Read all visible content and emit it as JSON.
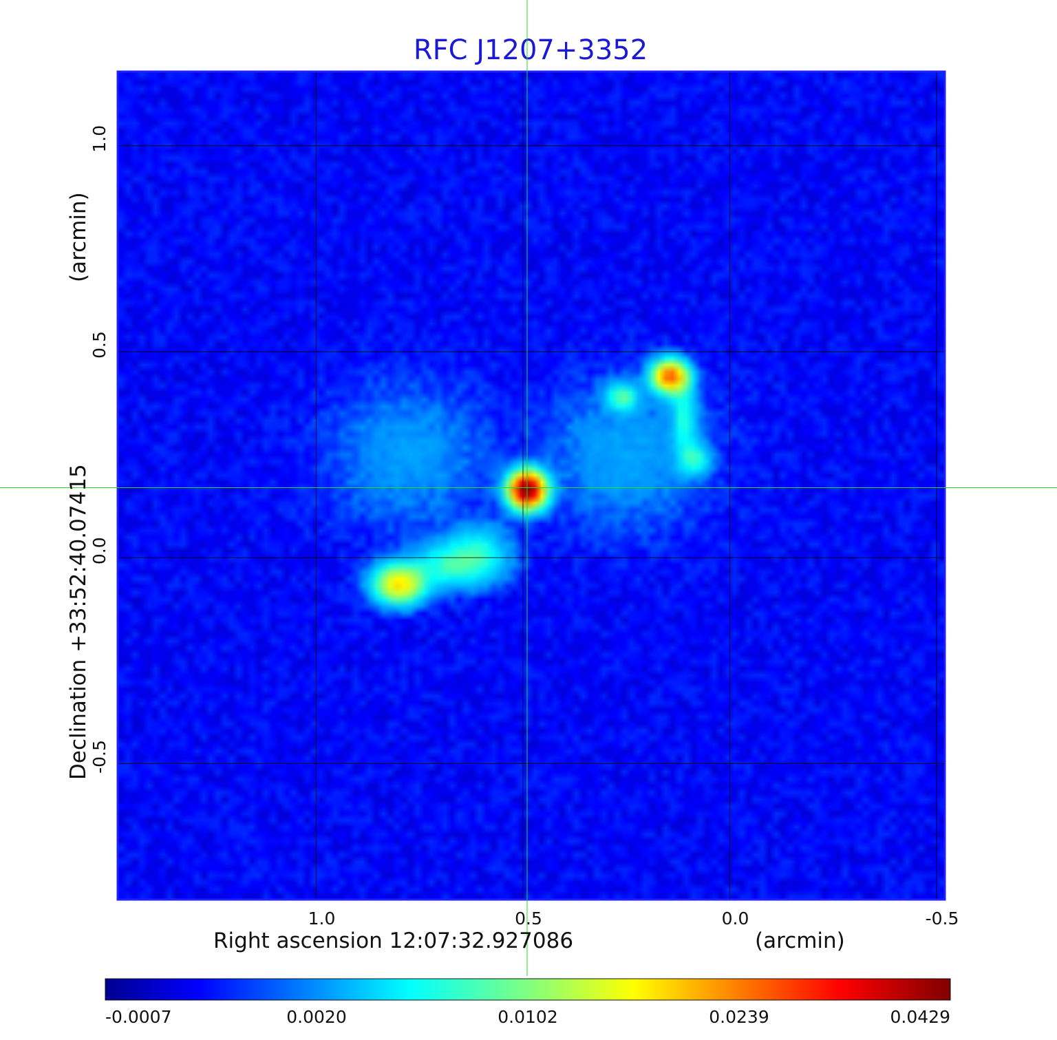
{
  "chart_data": {
    "type": "heatmap",
    "title": "RFC J1207+3352",
    "xlabel": "Right ascension  12:07:32.927086",
    "xunit": "(arcmin)",
    "ylabel": "Declination  +33:52:40.07415",
    "yunit": "(arcmin)",
    "xlim": [
      1.48,
      -0.52
    ],
    "ylim": [
      -0.83,
      1.18
    ],
    "x_ticks": [
      1.0,
      0.5,
      0.0,
      -0.5
    ],
    "x_tick_labels": [
      "1.0",
      "0.5",
      "0.0",
      "-0.5"
    ],
    "y_ticks": [
      -0.5,
      0.0,
      0.5,
      1.0
    ],
    "y_tick_labels": [
      "-0.5",
      "0.0",
      "0.5",
      "1.0"
    ],
    "grid": true,
    "crosshair": {
      "x": 0.49,
      "y": 0.17
    },
    "colormap": "jet",
    "colorbar": {
      "labels": [
        "-0.0007",
        "0.0020",
        "0.0102",
        "0.0239",
        "0.0429"
      ],
      "min": -0.0007,
      "max": 0.0429
    },
    "sources": [
      {
        "x": 0.49,
        "y": 0.165,
        "sx": 0.028,
        "sy": 0.028,
        "peak": 0.0429
      },
      {
        "x": 0.8,
        "y": -0.065,
        "sx": 0.04,
        "sy": 0.03,
        "peak": 0.0175
      },
      {
        "x": 0.67,
        "y": -0.02,
        "sx": 0.07,
        "sy": 0.035,
        "peak": 0.0065
      },
      {
        "x": 0.61,
        "y": 0.02,
        "sx": 0.05,
        "sy": 0.04,
        "peak": 0.0045
      },
      {
        "x": 0.145,
        "y": 0.44,
        "sx": 0.028,
        "sy": 0.025,
        "peak": 0.0255
      },
      {
        "x": 0.26,
        "y": 0.39,
        "sx": 0.025,
        "sy": 0.022,
        "peak": 0.0075
      },
      {
        "x": 0.085,
        "y": 0.24,
        "sx": 0.025,
        "sy": 0.025,
        "peak": 0.006
      },
      {
        "x": 0.11,
        "y": 0.34,
        "sx": 0.02,
        "sy": 0.06,
        "peak": 0.0055
      },
      {
        "x": 0.25,
        "y": 0.25,
        "sx": 0.13,
        "sy": 0.12,
        "peak": 0.0022
      },
      {
        "x": 0.78,
        "y": 0.25,
        "sx": 0.13,
        "sy": 0.12,
        "peak": 0.002
      }
    ]
  }
}
